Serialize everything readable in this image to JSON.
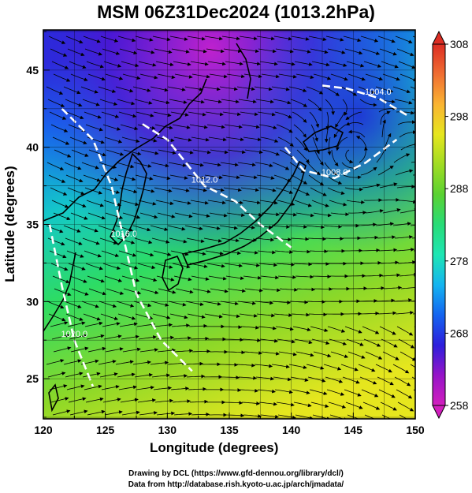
{
  "title": "MSM 06Z31Dec2024 (1013.2hPa)",
  "credits": {
    "line1": "Drawing by DCL (https://www.gfd-dennou.org/library/dcl/)",
    "line2": "Data from http://database.rish.kyoto-u.ac.jp/arch/jmadata/"
  },
  "chart_data": {
    "type": "heatmap",
    "title": "MSM 06Z31Dec2024 (1013.2hPa)",
    "xlabel": "Longitude (degrees)",
    "ylabel": "Latitude  (degrees)",
    "xlim": [
      120,
      150
    ],
    "ylim": [
      22.4,
      47.6
    ],
    "xticks": [
      120,
      125,
      130,
      135,
      140,
      145,
      150
    ],
    "yticks": [
      25,
      30,
      35,
      40,
      45
    ],
    "grid": true,
    "colorbar": {
      "min": 258,
      "max": 308,
      "ticks": [
        258,
        268,
        278,
        288,
        298,
        308
      ],
      "palette": [
        "#d21ebe",
        "#9614c8",
        "#2d1edc",
        "#1464f0",
        "#14b4f0",
        "#1ee6b4",
        "#28dc78",
        "#5ad232",
        "#a0dc23",
        "#e6e61e",
        "#fab432",
        "#f06e32",
        "#dc2d23"
      ]
    },
    "contours": [
      {
        "label": "1004.0",
        "points": [
          [
            142.5,
            44.0
          ],
          [
            144.5,
            43.8
          ],
          [
            147.0,
            43.2
          ],
          [
            149.5,
            42.0
          ]
        ]
      },
      {
        "label": "1008.0",
        "points": [
          [
            139.5,
            40.0
          ],
          [
            141.0,
            38.5
          ],
          [
            143.5,
            38.0
          ],
          [
            146.0,
            39.0
          ],
          [
            148.5,
            40.5
          ]
        ]
      },
      {
        "label": "1012.0",
        "points": [
          [
            128.0,
            41.5
          ],
          [
            130.0,
            40.5
          ],
          [
            131.5,
            39.0
          ],
          [
            133.0,
            37.5
          ],
          [
            135.5,
            36.5
          ],
          [
            137.5,
            35.0
          ],
          [
            140.0,
            33.5
          ]
        ]
      },
      {
        "label": "1016.0",
        "points": [
          [
            121.5,
            42.5
          ],
          [
            124.0,
            40.5
          ],
          [
            125.5,
            37.5
          ],
          [
            126.5,
            34.0
          ],
          [
            127.5,
            30.5
          ],
          [
            129.5,
            27.5
          ],
          [
            132.0,
            25.5
          ]
        ]
      },
      {
        "label": "1020.0",
        "points": [
          [
            120.5,
            35.0
          ],
          [
            121.5,
            31.0
          ],
          [
            122.5,
            27.5
          ],
          [
            124.0,
            24.5
          ]
        ]
      }
    ]
  }
}
